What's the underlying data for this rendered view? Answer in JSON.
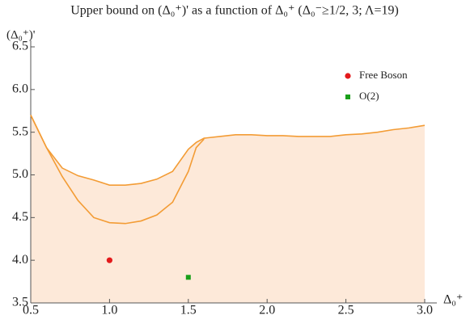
{
  "chart_data": {
    "type": "line",
    "title": "Upper bound on (Δ₀⁺)' as a function of Δ₀⁺ (Δ₀⁻≥1/2, 3; Λ=19)",
    "x_label": "Δ₀⁺",
    "y_label": "(Δ₀⁺)'",
    "xlim": [
      0.5,
      3.0
    ],
    "ylim": [
      3.5,
      6.5
    ],
    "xticks": [
      0.5,
      {
        "value": 1,
        "label": "1.0"
      },
      1.5,
      {
        "value": 2,
        "label": "2.0"
      },
      2.5,
      {
        "value": 3,
        "label": "3.0"
      }
    ],
    "yticks": [
      3.5,
      {
        "value": 4,
        "label": "4.0"
      },
      4.5,
      {
        "value": 5,
        "label": "5.0"
      },
      5.5,
      {
        "value": 6,
        "label": "6.0"
      },
      6.5
    ],
    "fill_color": "#fde9d9",
    "curves": [
      {
        "color": "#f39c35",
        "fill": true,
        "x": [
          0.5,
          0.6,
          0.7,
          0.8,
          0.9,
          1.0,
          1.1,
          1.2,
          1.3,
          1.4,
          1.5,
          1.55,
          1.6,
          1.7,
          1.8,
          1.9,
          2.0,
          2.1,
          2.2,
          2.3,
          2.4,
          2.5,
          2.6,
          2.7,
          2.8,
          2.9,
          3.0
        ],
        "values": [
          5.7,
          5.32,
          5.08,
          4.99,
          4.94,
          4.88,
          4.88,
          4.9,
          4.95,
          5.04,
          5.3,
          5.38,
          5.43,
          5.45,
          5.47,
          5.47,
          5.46,
          5.46,
          5.45,
          5.45,
          5.45,
          5.47,
          5.48,
          5.5,
          5.53,
          5.55,
          5.58
        ]
      },
      {
        "color": "#f39c35",
        "fill": false,
        "x": [
          0.5,
          0.6,
          0.7,
          0.8,
          0.9,
          1.0,
          1.1,
          1.2,
          1.3,
          1.4,
          1.5,
          1.55,
          1.6
        ],
        "values": [
          5.7,
          5.32,
          4.98,
          4.7,
          4.5,
          4.44,
          4.43,
          4.46,
          4.53,
          4.68,
          5.04,
          5.32,
          5.42
        ]
      }
    ],
    "points": [
      {
        "name": "Free Boson",
        "x": 1.0,
        "y": 4.0,
        "color": "#e31a1c",
        "marker": "circle"
      },
      {
        "name": "O(2)",
        "x": 1.5,
        "y": 3.8,
        "color": "#1a9f1a",
        "marker": "square"
      }
    ]
  }
}
